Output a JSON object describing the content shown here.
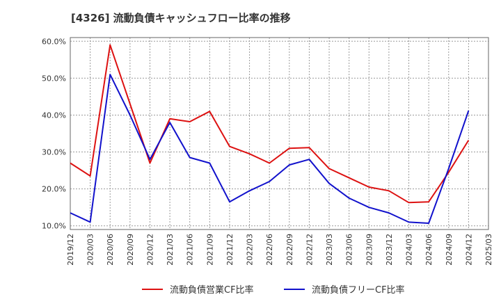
{
  "chart_data": {
    "type": "line",
    "title": "[4326]  流動負債キャッシュフロー比率の推移",
    "xlabel": "",
    "ylabel": "",
    "x_tick_labels": [
      "2019/12",
      "2020/03",
      "2020/06",
      "2020/09",
      "2020/12",
      "2021/03",
      "2021/06",
      "2021/09",
      "2021/12",
      "2022/03",
      "2022/06",
      "2022/09",
      "2022/12",
      "2023/03",
      "2023/06",
      "2023/09",
      "2023/12",
      "2024/03",
      "2024/06",
      "2024/09",
      "2024/12",
      "2025/03"
    ],
    "y_tick_labels": [
      "10.0%",
      "20.0%",
      "30.0%",
      "40.0%",
      "50.0%",
      "60.0%"
    ],
    "y_ticks": [
      10,
      20,
      30,
      40,
      50,
      60
    ],
    "ylim": [
      9,
      61
    ],
    "grid": true,
    "legend_position": "bottom",
    "x": [
      "2019/12",
      "2020/03",
      "2020/06",
      "2020/09",
      "2020/12",
      "2021/03",
      "2021/06",
      "2021/09",
      "2021/12",
      "2022/03",
      "2022/06",
      "2022/09",
      "2022/12",
      "2023/03",
      "2023/06",
      "2023/09",
      "2023/12",
      "2024/03",
      "2024/06",
      "2024/09",
      "2024/12"
    ],
    "series": [
      {
        "name": "流動負債営業CF比率",
        "color": "#dd1111",
        "values": [
          27.0,
          23.5,
          59.0,
          43.0,
          27.0,
          39.0,
          38.2,
          41.0,
          31.5,
          29.5,
          27.0,
          31.0,
          31.2,
          25.5,
          23.0,
          20.5,
          19.5,
          16.3,
          16.5,
          24.5,
          33.2
        ]
      },
      {
        "name": "流動負債フリーCF比率",
        "color": "#1111cc",
        "values": [
          13.5,
          11.0,
          51.0,
          40.0,
          28.0,
          38.0,
          28.5,
          27.0,
          16.5,
          19.5,
          22.0,
          26.5,
          28.0,
          21.5,
          17.5,
          15.0,
          13.5,
          11.0,
          10.7,
          25.5,
          41.2
        ]
      }
    ]
  }
}
